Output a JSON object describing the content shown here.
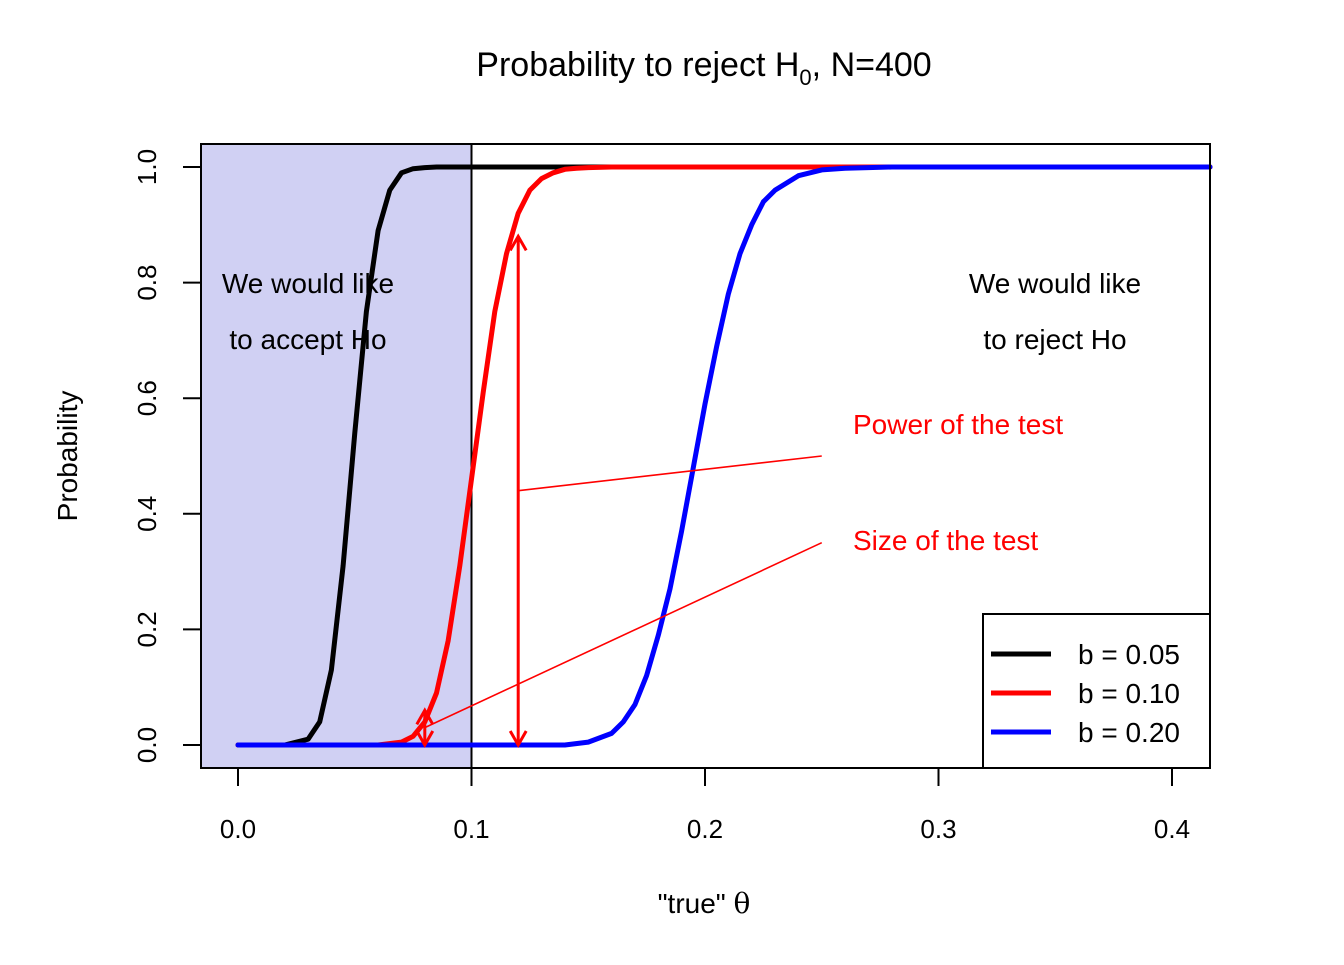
{
  "chart_data": {
    "type": "line",
    "title": {
      "prefix": "Probability to reject H",
      "subscript": "0",
      "suffix": ", N=400"
    },
    "xlabel": {
      "text": "\"true\" ",
      "symbol": "θ"
    },
    "ylabel": "Probability",
    "xlim": [
      0,
      0.42
    ],
    "ylim": [
      -0.04,
      1.04
    ],
    "x_ticks": [
      {
        "value": 0.0,
        "label": "0.0"
      },
      {
        "value": 0.1,
        "label": "0.1"
      },
      {
        "value": 0.2,
        "label": "0.2"
      },
      {
        "value": 0.3,
        "label": "0.3"
      },
      {
        "value": 0.4,
        "label": "0.4"
      }
    ],
    "y_ticks": [
      {
        "value": 0.0,
        "label": "0.0"
      },
      {
        "value": 0.2,
        "label": "0.2"
      },
      {
        "value": 0.4,
        "label": "0.4"
      },
      {
        "value": 0.6,
        "label": "0.6"
      },
      {
        "value": 0.8,
        "label": "0.8"
      },
      {
        "value": 1.0,
        "label": "1.0"
      }
    ],
    "grid": false,
    "shaded_region": {
      "x": [
        -0.02,
        0.1
      ],
      "color": "#d0d0f3"
    },
    "reference_line_x": 0.1,
    "series": [
      {
        "name": "b = 0.05",
        "color": "#000000",
        "x": [
          0,
          0.02,
          0.03,
          0.035,
          0.04,
          0.045,
          0.05,
          0.055,
          0.06,
          0.065,
          0.07,
          0.075,
          0.08,
          0.085,
          0.09,
          0.1,
          0.42
        ],
        "y": [
          0,
          0.0,
          0.01,
          0.04,
          0.13,
          0.31,
          0.54,
          0.75,
          0.89,
          0.96,
          0.99,
          0.997,
          0.999,
          1.0,
          1.0,
          1.0,
          1.0
        ]
      },
      {
        "name": "b = 0.10",
        "color": "#ff0000",
        "x": [
          0,
          0.06,
          0.07,
          0.075,
          0.08,
          0.085,
          0.09,
          0.095,
          0.1,
          0.105,
          0.11,
          0.115,
          0.12,
          0.125,
          0.13,
          0.135,
          0.14,
          0.145,
          0.15,
          0.16,
          0.42
        ],
        "y": [
          0,
          0.0,
          0.005,
          0.015,
          0.04,
          0.09,
          0.18,
          0.31,
          0.46,
          0.61,
          0.75,
          0.85,
          0.92,
          0.96,
          0.98,
          0.99,
          0.996,
          0.998,
          0.999,
          1.0,
          1.0
        ]
      },
      {
        "name": "b = 0.20",
        "color": "#0000ff",
        "x": [
          0,
          0.14,
          0.15,
          0.16,
          0.165,
          0.17,
          0.175,
          0.18,
          0.185,
          0.19,
          0.195,
          0.2,
          0.205,
          0.21,
          0.215,
          0.22,
          0.225,
          0.23,
          0.24,
          0.25,
          0.26,
          0.27,
          0.28,
          0.42
        ],
        "y": [
          0,
          0.0,
          0.005,
          0.02,
          0.04,
          0.07,
          0.12,
          0.19,
          0.27,
          0.37,
          0.48,
          0.59,
          0.69,
          0.78,
          0.85,
          0.9,
          0.94,
          0.96,
          0.985,
          0.995,
          0.998,
          0.999,
          1.0,
          1.0
        ]
      }
    ],
    "arrows": [
      {
        "name": "power-arrow",
        "x": 0.12,
        "y_from": 0.0,
        "y_to": 0.88,
        "color": "#ff0000"
      },
      {
        "name": "size-arrow",
        "x": 0.08,
        "y_from": 0.0,
        "y_to": 0.06,
        "color": "#ff0000"
      }
    ],
    "annotations": {
      "accept_line1": "We would like",
      "accept_line2": "to accept Ho",
      "reject_line1": "We would like",
      "reject_line2": "to reject Ho",
      "power_label": "Power of the test",
      "size_label": "Size of the test",
      "annotation_color": "#ff0000"
    },
    "pointer_lines": [
      {
        "name": "power-pointer-line",
        "from": [
          0.25,
          0.5
        ],
        "to": [
          0.12,
          0.44
        ]
      },
      {
        "name": "size-pointer-line",
        "from": [
          0.25,
          0.35
        ],
        "to": [
          0.08,
          0.03
        ]
      }
    ],
    "legend_position": "bottom-right"
  }
}
